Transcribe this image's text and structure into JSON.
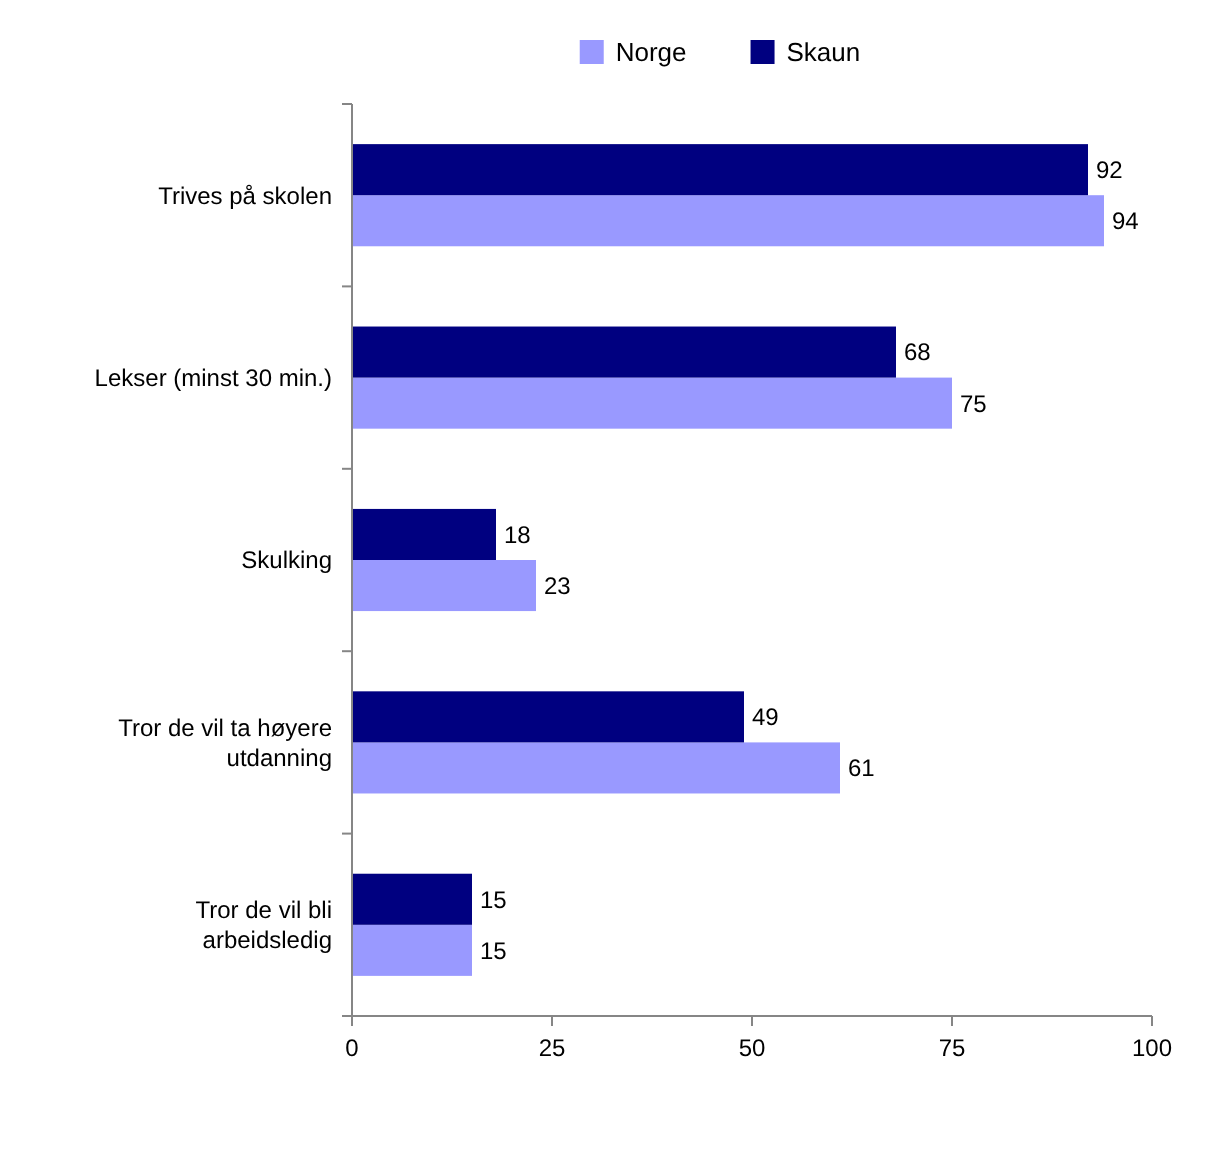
{
  "chart_data": {
    "type": "bar",
    "orientation": "horizontal",
    "categories": [
      "Trives på skolen",
      "Lekser (minst 30 min.)",
      "Skulking",
      "Tror de vil ta høyere utdanning",
      "Tror de vil bli arbeidsledig"
    ],
    "series": [
      {
        "name": "Norge",
        "color": "#9999ff",
        "values": [
          94,
          75,
          23,
          61,
          15
        ]
      },
      {
        "name": "Skaun",
        "color": "#000080",
        "values": [
          92,
          68,
          18,
          49,
          15
        ]
      }
    ],
    "xlim": [
      0,
      100
    ],
    "xticks": [
      0,
      25,
      50,
      75,
      100
    ],
    "data_labels": true,
    "legend": "top",
    "grid": false
  }
}
